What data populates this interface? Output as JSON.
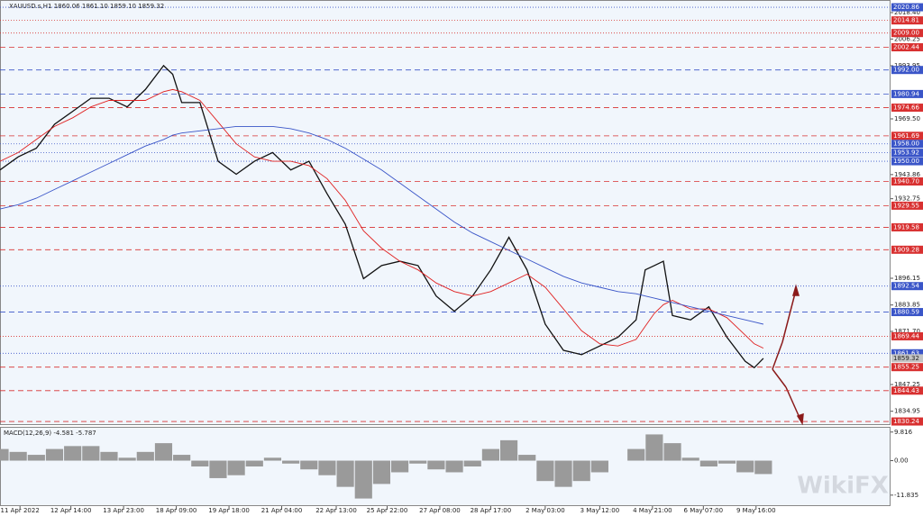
{
  "chart_data": [
    {
      "type": "line",
      "title": "XAUUSD.s,H1  1860.06 1861.10 1859.10 1859.32",
      "watermark": "WikiFX",
      "xlim": [
        0,
        490
      ],
      "ylim": [
        1828.6,
        2024.2
      ],
      "xticks": [
        {
          "value": 11,
          "label": "11 Apr 2022"
        },
        {
          "value": 39,
          "label": "12 Apr 14:00"
        },
        {
          "value": 68,
          "label": "13 Apr 23:00"
        },
        {
          "value": 97,
          "label": "18 Apr 09:00"
        },
        {
          "value": 126,
          "label": "19 Apr 18:00"
        },
        {
          "value": 155,
          "label": "21 Apr 04:00"
        },
        {
          "value": 185,
          "label": "22 Apr 13:00"
        },
        {
          "value": 213,
          "label": "25 Apr 22:00"
        },
        {
          "value": 242,
          "label": "27 Apr 08:00"
        },
        {
          "value": 270,
          "label": "28 Apr 17:00"
        },
        {
          "value": 300,
          "label": "2 May 03:00"
        },
        {
          "value": 330,
          "label": "3 May 12:00"
        },
        {
          "value": 359,
          "label": "4 May 21:00"
        },
        {
          "value": 387,
          "label": "6 May 07:00"
        },
        {
          "value": 416,
          "label": "9 May 16:00"
        }
      ],
      "yticks": [
        {
          "value": 2018.4,
          "label": "2018.40"
        },
        {
          "value": 2006.25,
          "label": "2006.25"
        },
        {
          "value": 1993.95,
          "label": "1993.95"
        },
        {
          "value": 1969.5,
          "label": "1969.50"
        },
        1943.86,
        1932.75,
        1896.15,
        1883.85,
        {
          "value": 1871.7,
          "label": "1871.70"
        },
        1847.25,
        1834.95
      ],
      "last_price": 1859.32,
      "levels": [
        {
          "value": 2020.86,
          "color": "#3a55c8",
          "style": "dot"
        },
        {
          "value": 2014.81,
          "color": "#d83030",
          "style": "dot"
        },
        {
          "value": 2009,
          "label": "2009.00",
          "color": "#d83030",
          "style": "dot"
        },
        {
          "value": 2002.44,
          "color": "#d83030",
          "style": "dash"
        },
        {
          "value": 1992,
          "label": "1992.00",
          "color": "#3a55c8",
          "style": "dash"
        },
        {
          "value": 1980.94,
          "color": "#3a55c8",
          "style": "dash"
        },
        {
          "value": 1974.66,
          "color": "#d83030",
          "style": "dash"
        },
        {
          "value": 1961.69,
          "color": "#d83030",
          "style": "dash"
        },
        {
          "value": 1958,
          "label": "1958.00",
          "color": "#3a55c8",
          "style": "dot"
        },
        {
          "value": 1953.92,
          "color": "#3a55c8",
          "style": "dot"
        },
        {
          "value": 1950,
          "label": "1950.00",
          "color": "#3a55c8",
          "style": "dot"
        },
        {
          "value": 1940.7,
          "label": "1940.70",
          "color": "#d83030",
          "style": "dash"
        },
        {
          "value": 1929.55,
          "color": "#d83030",
          "style": "dash"
        },
        {
          "value": 1919.58,
          "color": "#d83030",
          "style": "dash"
        },
        {
          "value": 1909.28,
          "color": "#d83030",
          "style": "dash"
        },
        {
          "value": 1892.54,
          "color": "#3a55c8",
          "style": "dot"
        },
        {
          "value": 1880.59,
          "color": "#3a55c8",
          "style": "dash"
        },
        {
          "value": 1869.44,
          "color": "#d83030",
          "style": "dot"
        },
        {
          "value": 1861.63,
          "color": "#3a55c8",
          "style": "dot"
        },
        {
          "value": 1855.25,
          "color": "#d83030",
          "style": "dash"
        },
        {
          "value": 1844.43,
          "color": "#d83030",
          "style": "dash"
        },
        {
          "value": 1830.24,
          "color": "#d83030",
          "style": "dash"
        }
      ],
      "x": [
        0,
        10,
        20,
        30,
        40,
        50,
        60,
        70,
        80,
        90,
        95,
        100,
        110,
        120,
        130,
        140,
        150,
        160,
        170,
        180,
        190,
        200,
        210,
        220,
        230,
        240,
        250,
        260,
        270,
        280,
        290,
        300,
        310,
        320,
        330,
        340,
        350,
        355,
        360,
        365,
        370,
        380,
        390,
        400,
        410,
        415,
        420
      ],
      "series": [
        {
          "color": "#111111",
          "values": [
            1946,
            1952,
            1956,
            1967,
            1973,
            1979,
            1979,
            1975,
            1983,
            1994,
            1990,
            1977,
            1977,
            1950,
            1944,
            1950,
            1954,
            1946,
            1950,
            1935,
            1921,
            1896,
            1902,
            1904,
            1902,
            1888,
            1881,
            1888,
            1900,
            1915,
            1900,
            1875,
            1863,
            1861,
            1865,
            1869,
            1877,
            1900,
            1902,
            1904,
            1879,
            1877,
            1883,
            1869,
            1858,
            1855,
            1859.32
          ]
        },
        {
          "color": "#e02020",
          "values": [
            1950,
            1954,
            1960,
            1966,
            1970,
            1975,
            1978,
            1978,
            1978,
            1982,
            1983,
            1982,
            1978,
            1968,
            1958,
            1952,
            1950,
            1950,
            1948,
            1942,
            1932,
            1918,
            1910,
            1904,
            1900,
            1894,
            1890,
            1888,
            1890,
            1894,
            1898,
            1892,
            1882,
            1872,
            1866,
            1865,
            1868,
            1874,
            1880,
            1884,
            1886,
            1882,
            1882,
            1878,
            1870,
            1866,
            1864
          ]
        },
        {
          "color": "#3a55c8",
          "values": [
            1928,
            1930,
            1933,
            1937,
            1941,
            1945,
            1949,
            1953,
            1957,
            1960,
            1962,
            1963,
            1964,
            1965,
            1966,
            1966,
            1966,
            1965,
            1963,
            1960,
            1956,
            1951,
            1946,
            1940,
            1934,
            1928,
            1922,
            1917,
            1913,
            1909,
            1905,
            1901,
            1897,
            1894,
            1892,
            1890,
            1889,
            1888,
            1887,
            1886,
            1885,
            1883,
            1881,
            1879,
            1877,
            1876,
            1875
          ]
        }
      ]
    },
    {
      "type": "bar",
      "title": "MACD(12,26,9) -4.581 -5.787",
      "ylim": [
        -15.6,
        11.6
      ],
      "yticks": [
        9.816,
        {
          "value": 0,
          "label": "0.00"
        },
        -11.835
      ],
      "color": "#9a9a9a",
      "x": [
        0,
        10,
        20,
        30,
        40,
        50,
        60,
        70,
        80,
        90,
        100,
        110,
        120,
        130,
        140,
        150,
        160,
        170,
        180,
        190,
        200,
        210,
        220,
        230,
        240,
        250,
        260,
        270,
        280,
        290,
        300,
        310,
        320,
        330,
        340,
        350,
        360,
        370,
        380,
        390,
        400,
        410,
        420
      ],
      "values": [
        4,
        3,
        2,
        4,
        5,
        5,
        3,
        1,
        3,
        6,
        2,
        -2,
        -6,
        -5,
        -2,
        1,
        -1,
        -3,
        -5,
        -9,
        -13,
        -8,
        -4,
        -1,
        -3,
        -4,
        -2,
        4,
        7,
        2,
        -7,
        -9,
        -7,
        -4,
        0,
        4,
        9,
        6,
        1,
        -2,
        -1,
        -4,
        -4.6
      ]
    }
  ]
}
